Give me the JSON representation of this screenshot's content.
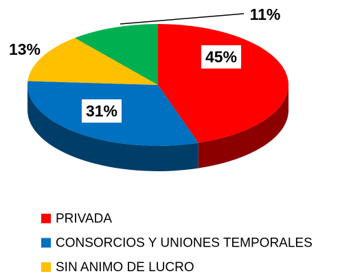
{
  "chart_data": {
    "type": "pie",
    "categories": [
      "PRIVADA",
      "CONSORCIOS Y UNIONES TEMPORALES",
      "SIN ANIMO DE LUCRO",
      null
    ],
    "values": [
      45,
      31,
      13,
      11
    ],
    "value_labels": [
      "45%",
      "31%",
      "13%",
      "11%"
    ],
    "colors": [
      "#ff0000",
      "#0070c0",
      "#ffc000",
      "#00b050"
    ],
    "legend": "bottom"
  }
}
